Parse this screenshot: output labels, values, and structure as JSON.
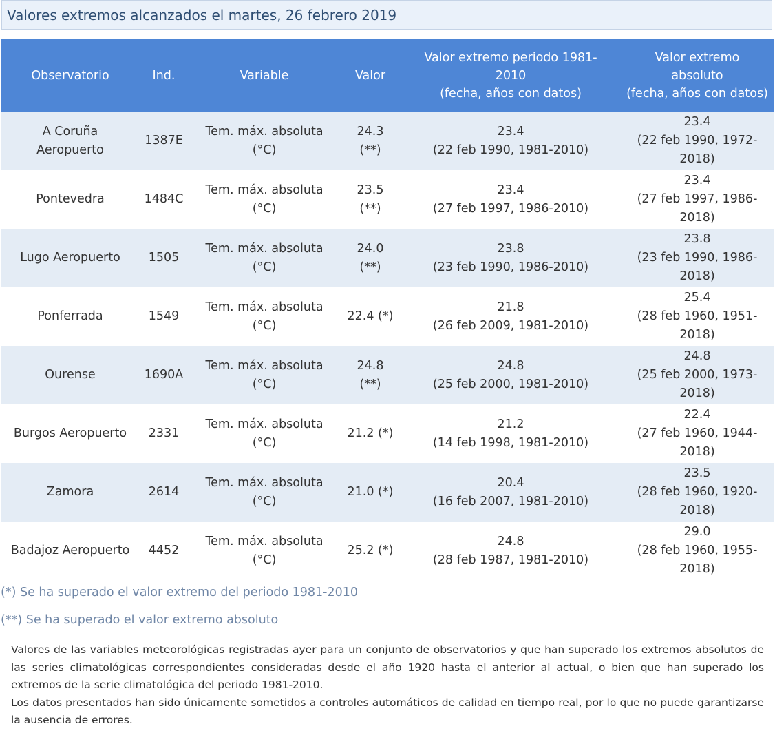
{
  "title": "Valores extremos alcanzados el martes, 26 febrero 2019",
  "table": {
    "headers": {
      "observatorio": "Observatorio",
      "ind": "Ind.",
      "variable": "Variable",
      "valor": "Valor",
      "periodo_line1": "Valor extremo periodo 1981-",
      "periodo_line2": "2010",
      "periodo_line3": "(fecha, años con datos)",
      "absoluto_line1": "Valor extremo",
      "absoluto_line2": "absoluto",
      "absoluto_line3": "(fecha, años con datos)"
    },
    "rows": [
      {
        "obs_lines": [
          "A Coruña",
          "Aeropuerto"
        ],
        "ind": "1387E",
        "var_lines": [
          "Tem. máx. absoluta",
          "(°C)"
        ],
        "valor_lines": [
          "24.3",
          "(**)"
        ],
        "periodo_lines": [
          "23.4",
          "(22 feb 1990, 1981-2010)"
        ],
        "absoluto_lines": [
          "23.4",
          "(22 feb 1990, 1972-",
          "2018)"
        ]
      },
      {
        "obs_lines": [
          "Pontevedra"
        ],
        "ind": "1484C",
        "var_lines": [
          "Tem. máx. absoluta",
          "(°C)"
        ],
        "valor_lines": [
          "23.5",
          "(**)"
        ],
        "periodo_lines": [
          "23.4",
          "(27 feb 1997, 1986-2010)"
        ],
        "absoluto_lines": [
          "23.4",
          "(27 feb 1997, 1986-",
          "2018)"
        ]
      },
      {
        "obs_lines": [
          "Lugo Aeropuerto"
        ],
        "ind": "1505",
        "var_lines": [
          "Tem. máx. absoluta",
          "(°C)"
        ],
        "valor_lines": [
          "24.0",
          "(**)"
        ],
        "periodo_lines": [
          "23.8",
          "(23 feb 1990, 1986-2010)"
        ],
        "absoluto_lines": [
          "23.8",
          "(23 feb 1990, 1986-",
          "2018)"
        ]
      },
      {
        "obs_lines": [
          "Ponferrada"
        ],
        "ind": "1549",
        "var_lines": [
          "Tem. máx. absoluta",
          "(°C)"
        ],
        "valor_lines": [
          "22.4 (*)"
        ],
        "periodo_lines": [
          "21.8",
          "(26 feb 2009, 1981-2010)"
        ],
        "absoluto_lines": [
          "25.4",
          "(28 feb 1960, 1951-",
          "2018)"
        ]
      },
      {
        "obs_lines": [
          "Ourense"
        ],
        "ind": "1690A",
        "var_lines": [
          "Tem. máx. absoluta",
          "(°C)"
        ],
        "valor_lines": [
          "24.8",
          "(**)"
        ],
        "periodo_lines": [
          "24.8",
          "(25 feb 2000, 1981-2010)"
        ],
        "absoluto_lines": [
          "24.8",
          "(25 feb 2000, 1973-",
          "2018)"
        ]
      },
      {
        "obs_lines": [
          "Burgos Aeropuerto"
        ],
        "ind": "2331",
        "var_lines": [
          "Tem. máx. absoluta",
          "(°C)"
        ],
        "valor_lines": [
          "21.2 (*)"
        ],
        "periodo_lines": [
          "21.2",
          "(14 feb 1998, 1981-2010)"
        ],
        "absoluto_lines": [
          "22.4",
          "(27 feb 1960, 1944-",
          "2018)"
        ]
      },
      {
        "obs_lines": [
          "Zamora"
        ],
        "ind": "2614",
        "var_lines": [
          "Tem. máx. absoluta",
          "(°C)"
        ],
        "valor_lines": [
          "21.0 (*)"
        ],
        "periodo_lines": [
          "20.4",
          "(16 feb 2007, 1981-2010)"
        ],
        "absoluto_lines": [
          "23.5",
          "(28 feb 1960, 1920-",
          "2018)"
        ]
      },
      {
        "obs_lines": [
          "Badajoz Aeropuerto"
        ],
        "ind": "4452",
        "var_lines": [
          "Tem. máx. absoluta",
          "(°C)"
        ],
        "valor_lines": [
          "25.2 (*)"
        ],
        "periodo_lines": [
          "24.8",
          "(28 feb 1987, 1981-2010)"
        ],
        "absoluto_lines": [
          "29.0",
          "(28 feb 1960, 1955-",
          "2018)"
        ]
      }
    ]
  },
  "notes": {
    "single_star": "(*) Se ha superado el valor extremo del periodo 1981-2010",
    "double_star": "(**) Se ha superado el valor extremo absoluto"
  },
  "description": {
    "paragraph1": "Valores de las variables meteorológicas registradas ayer para un conjunto de observatorios y que han superado los extremos absolutos de las series climatológicas correspondientes consideradas desde el año 1920 hasta el anterior al actual, o bien que han superado los extremos de la serie climatológica del periodo 1981-2010.",
    "paragraph2": "Los datos presentados han sido únicamente sometidos a controles automáticos de calidad en tiempo real, por lo que no puede garantizarse la ausencia de errores."
  },
  "colors": {
    "header_bg": "#4e86d6",
    "row_shade": "#e4ecf5",
    "title_bg": "#eaf1fa",
    "title_text": "#2f4e73",
    "note_text": "#6f86a6"
  }
}
